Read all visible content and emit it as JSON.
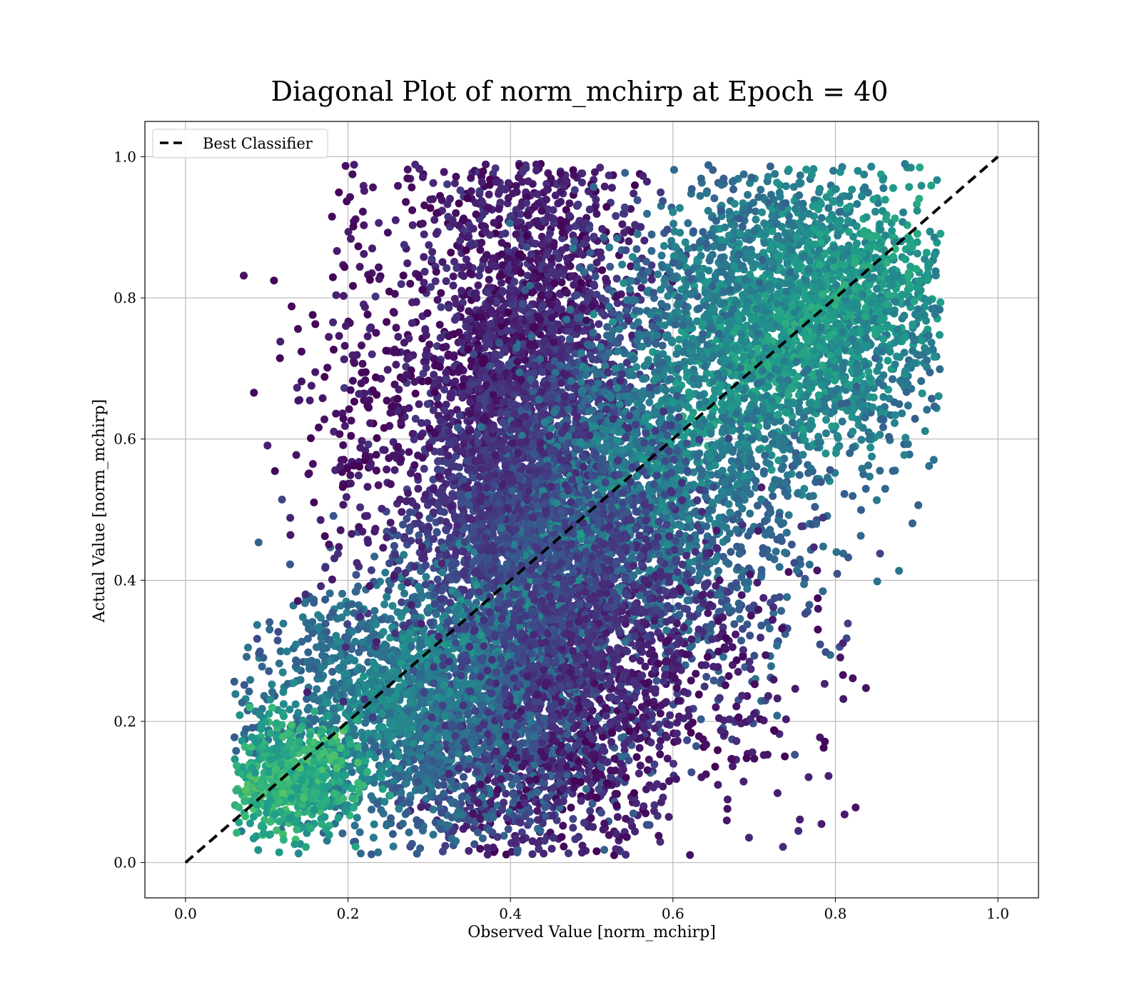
{
  "chart_data": {
    "type": "scatter",
    "title": "Diagonal Plot of norm_mchirp at Epoch = 40",
    "xlabel": "Observed Value [norm_mchirp]",
    "ylabel": "Actual Value [norm_mchirp]",
    "xlim": [
      -0.05,
      1.05
    ],
    "ylim": [
      -0.05,
      1.05
    ],
    "xticks": [
      0.0,
      0.2,
      0.4,
      0.6,
      0.8,
      1.0
    ],
    "yticks": [
      0.0,
      0.2,
      0.4,
      0.6,
      0.8,
      1.0
    ],
    "xtick_labels": [
      "0.0",
      "0.2",
      "0.4",
      "0.6",
      "0.8",
      "1.0"
    ],
    "ytick_labels": [
      "0.0",
      "0.2",
      "0.4",
      "0.6",
      "0.8",
      "1.0"
    ],
    "grid": true,
    "legend_position": "top-left",
    "colormap": "viridis",
    "series": [
      {
        "name": "Best Classifier",
        "kind": "line",
        "style": "dashed",
        "color": "#000000",
        "x": [
          0.0,
          1.0
        ],
        "y": [
          0.0,
          1.0
        ]
      }
    ],
    "scatter_clusters": [
      {
        "cx": 0.42,
        "cy": 0.55,
        "sx": 0.07,
        "sy": 0.26,
        "n": 5200,
        "cmin": 0.0,
        "cmax": 0.35
      },
      {
        "cx": 0.3,
        "cy": 0.22,
        "sx": 0.11,
        "sy": 0.09,
        "n": 2400,
        "cmin": 0.15,
        "cmax": 0.55
      },
      {
        "cx": 0.76,
        "cy": 0.78,
        "sx": 0.09,
        "sy": 0.1,
        "n": 2600,
        "cmin": 0.25,
        "cmax": 0.65
      },
      {
        "cx": 0.6,
        "cy": 0.55,
        "sx": 0.09,
        "sy": 0.14,
        "n": 1800,
        "cmin": 0.2,
        "cmax": 0.55
      },
      {
        "cx": 0.13,
        "cy": 0.12,
        "sx": 0.04,
        "sy": 0.04,
        "n": 600,
        "cmin": 0.35,
        "cmax": 0.75
      },
      {
        "cx": 0.48,
        "cy": 0.35,
        "sx": 0.08,
        "sy": 0.15,
        "n": 1500,
        "cmin": 0.0,
        "cmax": 0.3
      },
      {
        "cx": 0.65,
        "cy": 0.25,
        "sx": 0.08,
        "sy": 0.12,
        "n": 180,
        "cmin": 0.0,
        "cmax": 0.25
      },
      {
        "cx": 0.22,
        "cy": 0.65,
        "sx": 0.05,
        "sy": 0.15,
        "n": 260,
        "cmin": 0.0,
        "cmax": 0.2
      }
    ],
    "point_count": 14540
  }
}
